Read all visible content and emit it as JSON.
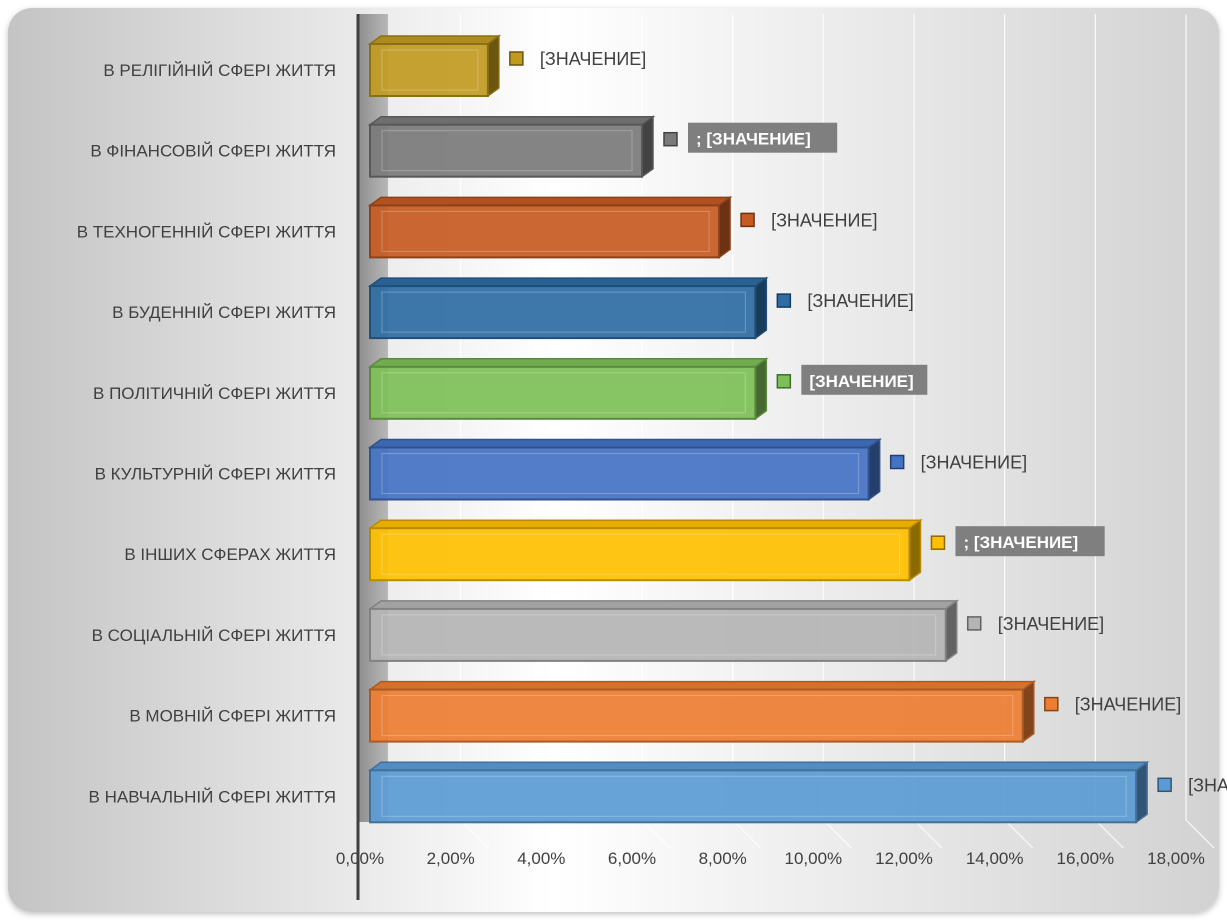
{
  "chart_data": {
    "type": "bar",
    "orientation": "horizontal",
    "categories": [
      "В РЕЛІГІЙНІЙ СФЕРІ ЖИТТЯ",
      "В ФІНАНСОВІЙ СФЕРІ ЖИТТЯ",
      "В ТЕХНОГЕННІЙ СФЕРІ ЖИТТЯ",
      "В БУДЕННІЙ СФЕРІ ЖИТТЯ",
      "В ПОЛІТИЧНІЙ СФЕРІ ЖИТТЯ",
      "В КУЛЬТУРНІЙ СФЕРІ ЖИТТЯ",
      "В ІНШИХ СФЕРАХ ЖИТТЯ",
      "В СОЦІАЛЬНІЙ СФЕРІ ЖИТТЯ",
      "В МОВНІЙ СФЕРІ ЖИТТЯ",
      "В НАВЧАЛЬНІЙ СФЕРІ ЖИТТЯ"
    ],
    "values": [
      2.6,
      6.0,
      7.7,
      8.5,
      8.5,
      11.0,
      11.9,
      12.7,
      14.4,
      16.9
    ],
    "colors": [
      "#c09a1f",
      "#7a7a7a",
      "#c55a22",
      "#2e6ca4",
      "#7dbf57",
      "#4472c4",
      "#ffc000",
      "#b4b4b4",
      "#ed7d31",
      "#5b9bd5"
    ],
    "data_labels": [
      "[ЗНАЧЕНИЕ]",
      "; [ЗНАЧЕНИЕ]",
      "[ЗНАЧЕНИЕ]",
      "[ЗНАЧЕНИЕ]",
      "[ЗНАЧЕНИЕ]",
      "[ЗНАЧЕНИЕ]",
      "; [ЗНАЧЕНИЕ]",
      "[ЗНАЧЕНИЕ]",
      "[ЗНАЧЕНИЕ]",
      "[ЗНАЧЕНИЕ]"
    ],
    "boxed_labels": [
      false,
      true,
      false,
      false,
      true,
      false,
      true,
      false,
      false,
      false
    ],
    "label_box_color": "#7f7f7f",
    "xlim": [
      0,
      18
    ],
    "xticks": [
      "0,00%",
      "2,00%",
      "4,00%",
      "6,00%",
      "8,00%",
      "10,00%",
      "12,00%",
      "14,00%",
      "16,00%",
      "18,00%"
    ],
    "xtick_values": [
      0,
      2,
      4,
      6,
      8,
      10,
      12,
      14,
      16,
      18
    ],
    "grid": true,
    "legend": "none",
    "title": "",
    "xlabel": "",
    "ylabel": ""
  }
}
